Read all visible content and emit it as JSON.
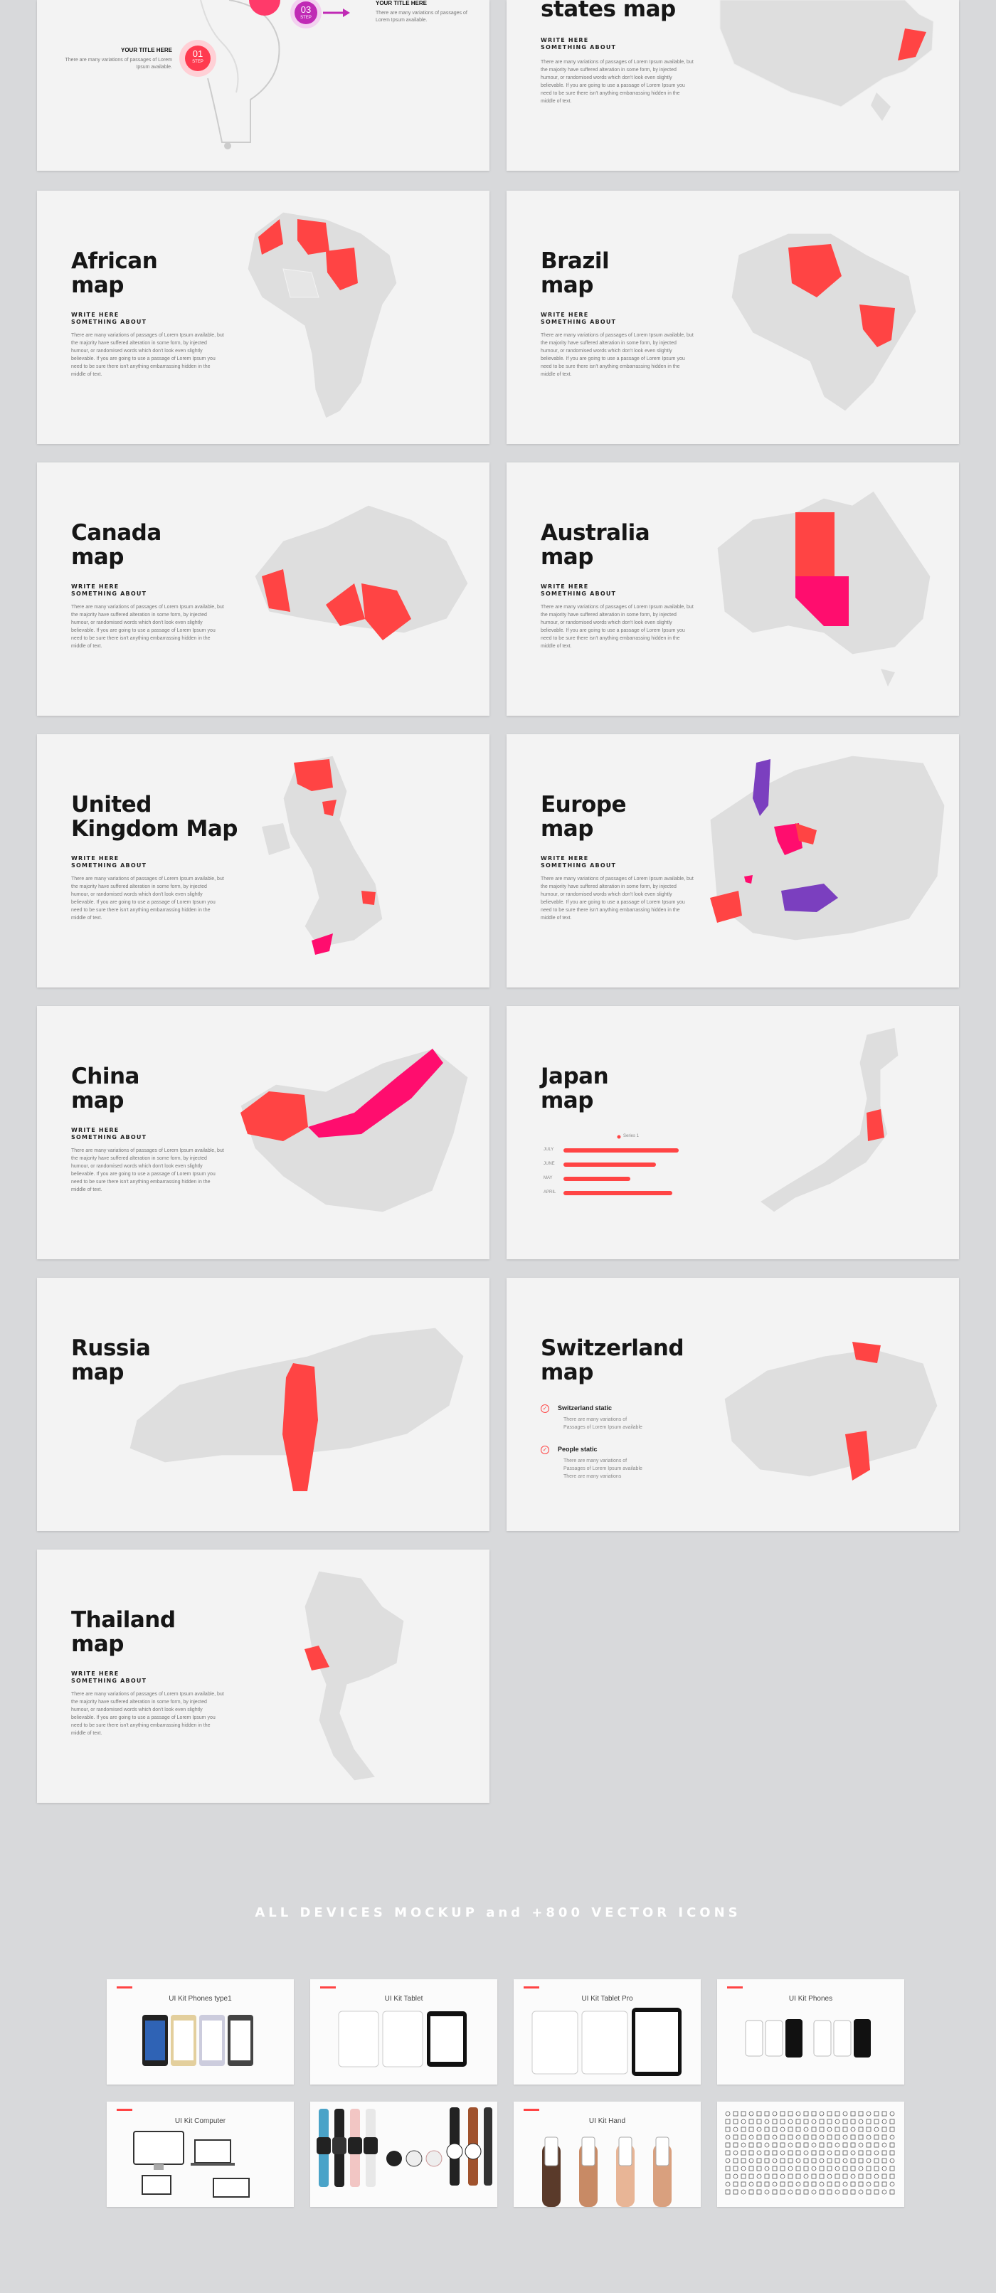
{
  "colors": {
    "accent": "#ff4444",
    "magenta": "#ff0d6e",
    "purple": "#7b3fbf",
    "map_gray": "#dedede",
    "background": "#d8d9db"
  },
  "body_text": "There are many variations of passages of Lorem Ipsum available, but the majority have suffered alteration in some form, by injected humour, or randomised words which don't look even slightly believable. If you are going to use a passage of Lorem Ipsum you need to be sure there isn't anything embarrassing hidden in the middle of text.",
  "subtitle": "WRITE HERE\nSOMETHING ABOUT",
  "top_left": {
    "step3_num": "03",
    "step3_label": "STEP",
    "step1_num": "01",
    "step1_label": "STEP",
    "right_title": "YOUR TITLE HERE",
    "right_text": "There are many variations of passages of Lorem Ipsum available.",
    "left_title": "YOUR TITLE HERE",
    "left_text": "There are many variations of passages of Lorem Ipsum available."
  },
  "top_right": {
    "title": "states map"
  },
  "slides": [
    {
      "title": "African\nmap"
    },
    {
      "title": "Brazil\nmap"
    },
    {
      "title": "Canada\nmap"
    },
    {
      "title": "Australia\nmap"
    },
    {
      "title": "United\nKingdom Map"
    },
    {
      "title": "Europe\nmap"
    },
    {
      "title": "China\nmap"
    },
    {
      "title": "Japan\nmap"
    },
    {
      "title": "Russia\nmap"
    },
    {
      "title": "Switzerland\nmap"
    },
    {
      "title": "Thailand\nmap"
    }
  ],
  "japan": {
    "legend": "Series 1",
    "bars": [
      {
        "label": "JULY",
        "value": 0.9
      },
      {
        "label": "JUNE",
        "value": 0.72
      },
      {
        "label": "MAY",
        "value": 0.52
      },
      {
        "label": "APRIL",
        "value": 0.85
      }
    ]
  },
  "switzerland": {
    "item1_title": "Switzerland static",
    "item1_lines": [
      "There are many variations of",
      "Passages of Lorem Ipsum available"
    ],
    "item2_title": "People static",
    "item2_lines": [
      "There are many variations of",
      "Passages of Lorem Ipsum available",
      "There are many variations"
    ]
  },
  "section_title": "ALL DEVICES MOCKUP and +800 VECTOR ICONS",
  "mockups": [
    {
      "title": "UI Kit Phones type1"
    },
    {
      "title": "UI Kit Tablet"
    },
    {
      "title": "UI Kit Tablet Pro"
    },
    {
      "title": "UI Kit Phones"
    },
    {
      "title": "UI Kit Computer"
    },
    {
      "title": ""
    },
    {
      "title": "UI Kit Hand"
    },
    {
      "title": ""
    }
  ]
}
